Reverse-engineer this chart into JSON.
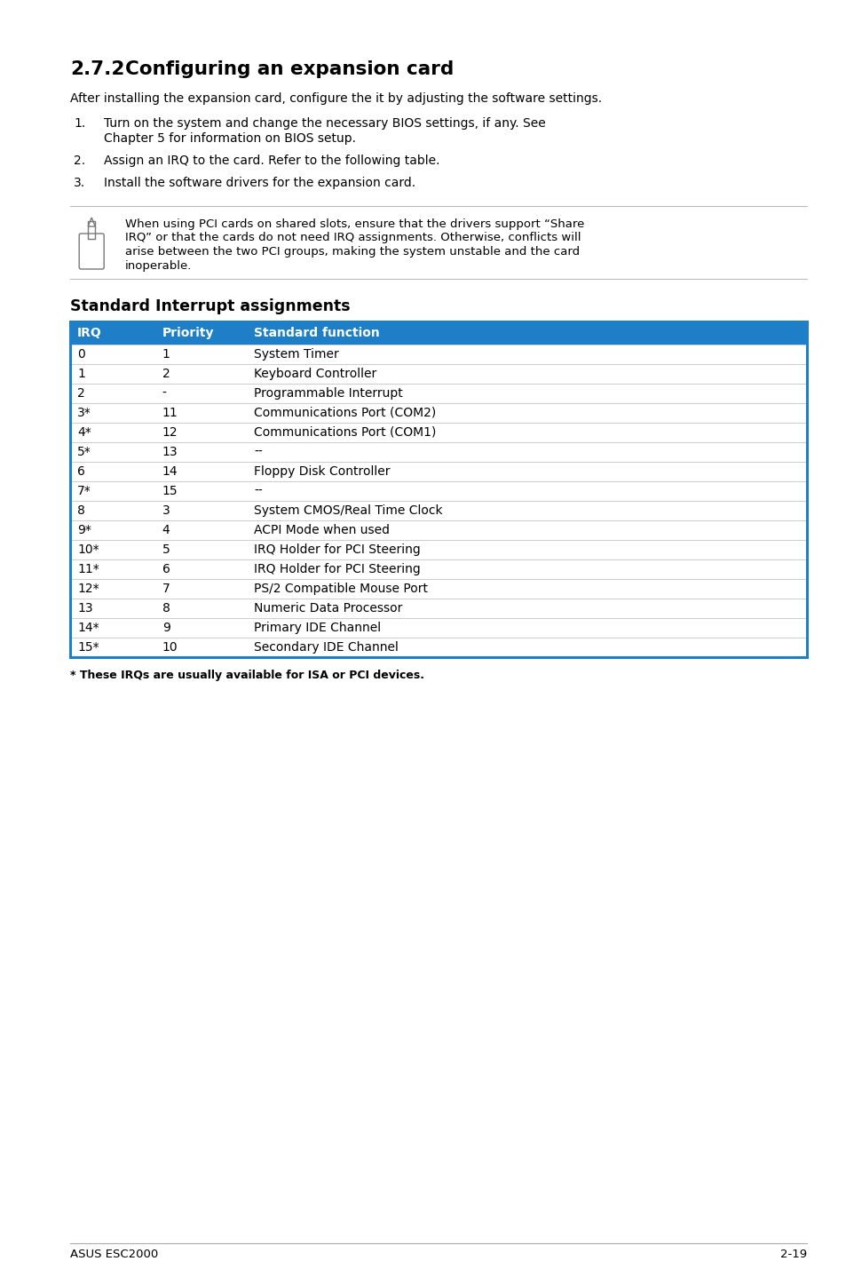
{
  "page_bg": "#ffffff",
  "section_num": "2.7.2",
  "section_title": "Configuring an expansion card",
  "intro_text": "After installing the expansion card, configure the it by adjusting the software settings.",
  "list_items": [
    [
      "Turn on the system and change the necessary BIOS settings, if any. See",
      "Chapter 5 for information on BIOS setup."
    ],
    [
      "Assign an IRQ to the card. Refer to the following table."
    ],
    [
      "Install the software drivers for the expansion card."
    ]
  ],
  "note_text_lines": [
    "When using PCI cards on shared slots, ensure that the drivers support “Share",
    "IRQ” or that the cards do not need IRQ assignments. Otherwise, conflicts will",
    "arise between the two PCI groups, making the system unstable and the card",
    "inoperable."
  ],
  "table_section_title": "Standard Interrupt assignments",
  "table_header": [
    "IRQ",
    "Priority",
    "Standard function"
  ],
  "table_header_bg": "#1e7ec8",
  "table_header_color": "#ffffff",
  "table_rows": [
    [
      "0",
      "1",
      "System Timer"
    ],
    [
      "1",
      "2",
      "Keyboard Controller"
    ],
    [
      "2",
      "-",
      "Programmable Interrupt"
    ],
    [
      "3*",
      "11",
      "Communications Port (COM2)"
    ],
    [
      "4*",
      "12",
      "Communications Port (COM1)"
    ],
    [
      "5*",
      "13",
      "--"
    ],
    [
      "6",
      "14",
      "Floppy Disk Controller"
    ],
    [
      "7*",
      "15",
      "--"
    ],
    [
      "8",
      "3",
      "System CMOS/Real Time Clock"
    ],
    [
      "9*",
      "4",
      "ACPI Mode when used"
    ],
    [
      "10*",
      "5",
      "IRQ Holder for PCI Steering"
    ],
    [
      "11*",
      "6",
      "IRQ Holder for PCI Steering"
    ],
    [
      "12*",
      "7",
      "PS/2 Compatible Mouse Port"
    ],
    [
      "13",
      "8",
      "Numeric Data Processor"
    ],
    [
      "14*",
      "9",
      "Primary IDE Channel"
    ],
    [
      "15*",
      "10",
      "Secondary IDE Channel"
    ]
  ],
  "table_border_color": "#1e7ec8",
  "table_line_color": "#cccccc",
  "footnote_text": "* These IRQs are usually available for ISA or PCI devices.",
  "footer_left": "ASUS ESC2000",
  "footer_right": "2-19",
  "footer_line_color": "#aaaaaa",
  "ml": 0.083,
  "mr": 0.953
}
